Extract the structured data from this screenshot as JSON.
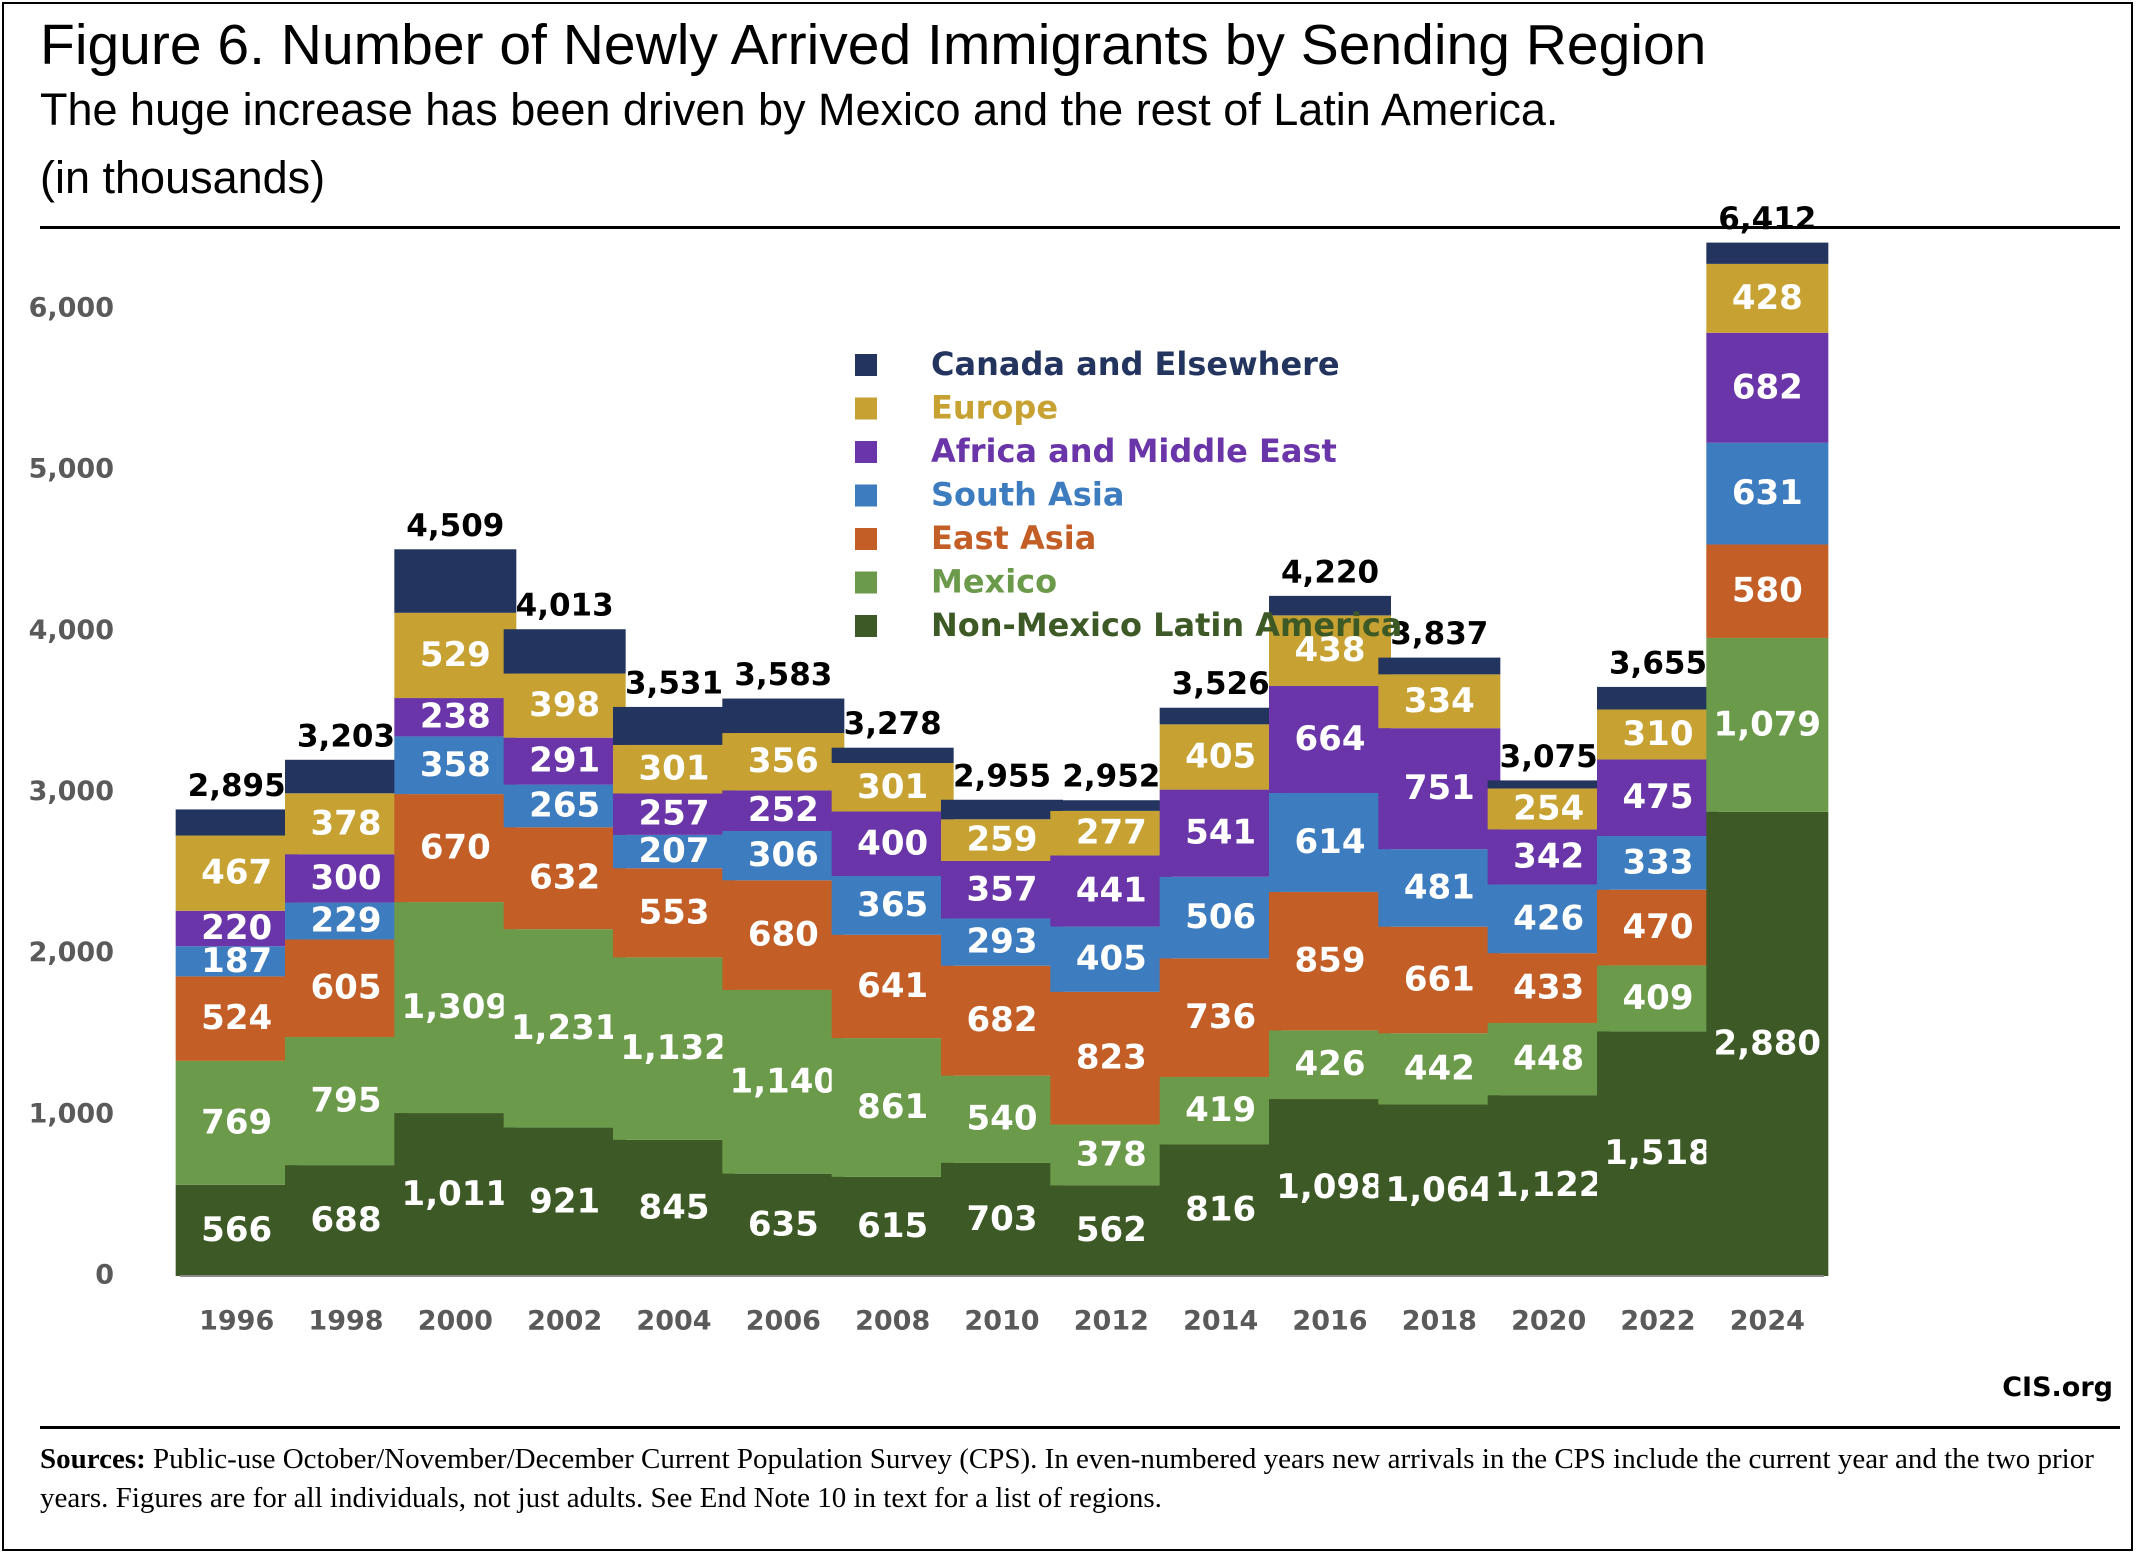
{
  "title": "Figure 6. Number of Newly Arrived Immigrants by Sending Region",
  "subtitle": "The huge increase has been driven by Mexico and the rest of Latin America.",
  "units_note": "(in thousands)",
  "brand": "CIS.org",
  "sources": {
    "label": "Sources:",
    "text": "Public-use October/November/December Current Population Survey (CPS). In even-numbered years new arrivals in the CPS include the current year and the two prior years. Figures are for all individuals, not just adults.   See End Note 10 in text for a list of regions."
  },
  "chart_data": {
    "type": "bar",
    "stacked": true,
    "categories": [
      "1996",
      "1998",
      "2000",
      "2002",
      "2004",
      "2006",
      "2008",
      "2010",
      "2012",
      "2014",
      "2016",
      "2018",
      "2020",
      "2022",
      "2024"
    ],
    "ylim": [
      0,
      6500
    ],
    "yticks": [
      0,
      1000,
      2000,
      3000,
      4000,
      5000,
      6000
    ],
    "ytick_labels": [
      "0",
      "1,000",
      "2,000",
      "3,000",
      "4,000",
      "5,000",
      "6,000"
    ],
    "grid": false,
    "legend_position": "top-center",
    "series": [
      {
        "name": "Non-Mexico Latin America",
        "color": "#3d5a26",
        "text_color": "#3d5a26",
        "label_color": "#ffffff",
        "values": [
          566,
          688,
          1011,
          921,
          845,
          635,
          615,
          703,
          562,
          816,
          1098,
          1064,
          1122,
          1518,
          2880
        ],
        "labels": [
          "566",
          "688",
          "1,011",
          "921",
          "845",
          "635",
          "615",
          "703",
          "562",
          "816",
          "1,098",
          "1,064",
          "1,122",
          "1,518",
          "2,880"
        ]
      },
      {
        "name": "Mexico",
        "color": "#6b9a4a",
        "text_color": "#6b9a4a",
        "label_color": "#ffffff",
        "values": [
          769,
          795,
          1309,
          1231,
          1132,
          1140,
          861,
          540,
          378,
          419,
          426,
          442,
          448,
          409,
          1079
        ],
        "labels": [
          "769",
          "795",
          "1,309",
          "1,231",
          "1,132",
          "1,140",
          "861",
          "540",
          "378",
          "419",
          "426",
          "442",
          "448",
          "409",
          "1,079"
        ]
      },
      {
        "name": "East Asia",
        "color": "#c25e26",
        "text_color": "#c25e26",
        "label_color": "#ffffff",
        "values": [
          524,
          605,
          670,
          632,
          553,
          680,
          641,
          682,
          823,
          736,
          859,
          661,
          433,
          470,
          580
        ],
        "labels": [
          "524",
          "605",
          "670",
          "632",
          "553",
          "680",
          "641",
          "682",
          "823",
          "736",
          "859",
          "661",
          "433",
          "470",
          "580"
        ]
      },
      {
        "name": "South Asia",
        "color": "#3d7dbf",
        "text_color": "#3d7dbf",
        "label_color": "#ffffff",
        "values": [
          187,
          229,
          358,
          265,
          207,
          306,
          365,
          293,
          405,
          506,
          614,
          481,
          426,
          333,
          631
        ],
        "labels": [
          "187",
          "229",
          "358",
          "265",
          "207",
          "306",
          "365",
          "293",
          "405",
          "506",
          "614",
          "481",
          "426",
          "333",
          "631"
        ]
      },
      {
        "name": "Africa and Middle East",
        "color": "#6a35a8",
        "text_color": "#6a35a8",
        "label_color": "#ffffff",
        "values": [
          220,
          300,
          238,
          291,
          257,
          252,
          400,
          357,
          441,
          541,
          664,
          751,
          342,
          475,
          682
        ],
        "labels": [
          "220",
          "300",
          "238",
          "291",
          "257",
          "252",
          "400",
          "357",
          "441",
          "541",
          "664",
          "751",
          "342",
          "475",
          "682"
        ]
      },
      {
        "name": "Europe",
        "color": "#c7a232",
        "text_color": "#c7a232",
        "label_color": "#ffffff",
        "values": [
          467,
          378,
          529,
          398,
          301,
          356,
          301,
          259,
          277,
          405,
          438,
          334,
          254,
          310,
          428
        ],
        "labels": [
          "467",
          "378",
          "529",
          "398",
          "301",
          "356",
          "301",
          "259",
          "277",
          "405",
          "438",
          "334",
          "254",
          "310",
          "428"
        ]
      },
      {
        "name": "Canada and Elsewhere",
        "color": "#23345f",
        "text_color": "#23345f",
        "label_color": "#ffffff",
        "values": [
          162,
          208,
          394,
          275,
          236,
          214,
          95,
          121,
          66,
          103,
          121,
          104,
          50,
          140,
          132
        ],
        "labels": null
      }
    ],
    "totals": [
      2895,
      3203,
      4509,
      4013,
      3531,
      3583,
      3278,
      2955,
      2952,
      3526,
      4220,
      3837,
      3075,
      3655,
      6412
    ],
    "total_labels": [
      "2,895",
      "3,203",
      "4,509",
      "4,013",
      "3,531",
      "3,583",
      "3,278",
      "2,955",
      "2,952",
      "3,526",
      "4,220",
      "3,837",
      "3,075",
      "3,655",
      "6,412"
    ],
    "axis_color": "#5a5a5a"
  }
}
